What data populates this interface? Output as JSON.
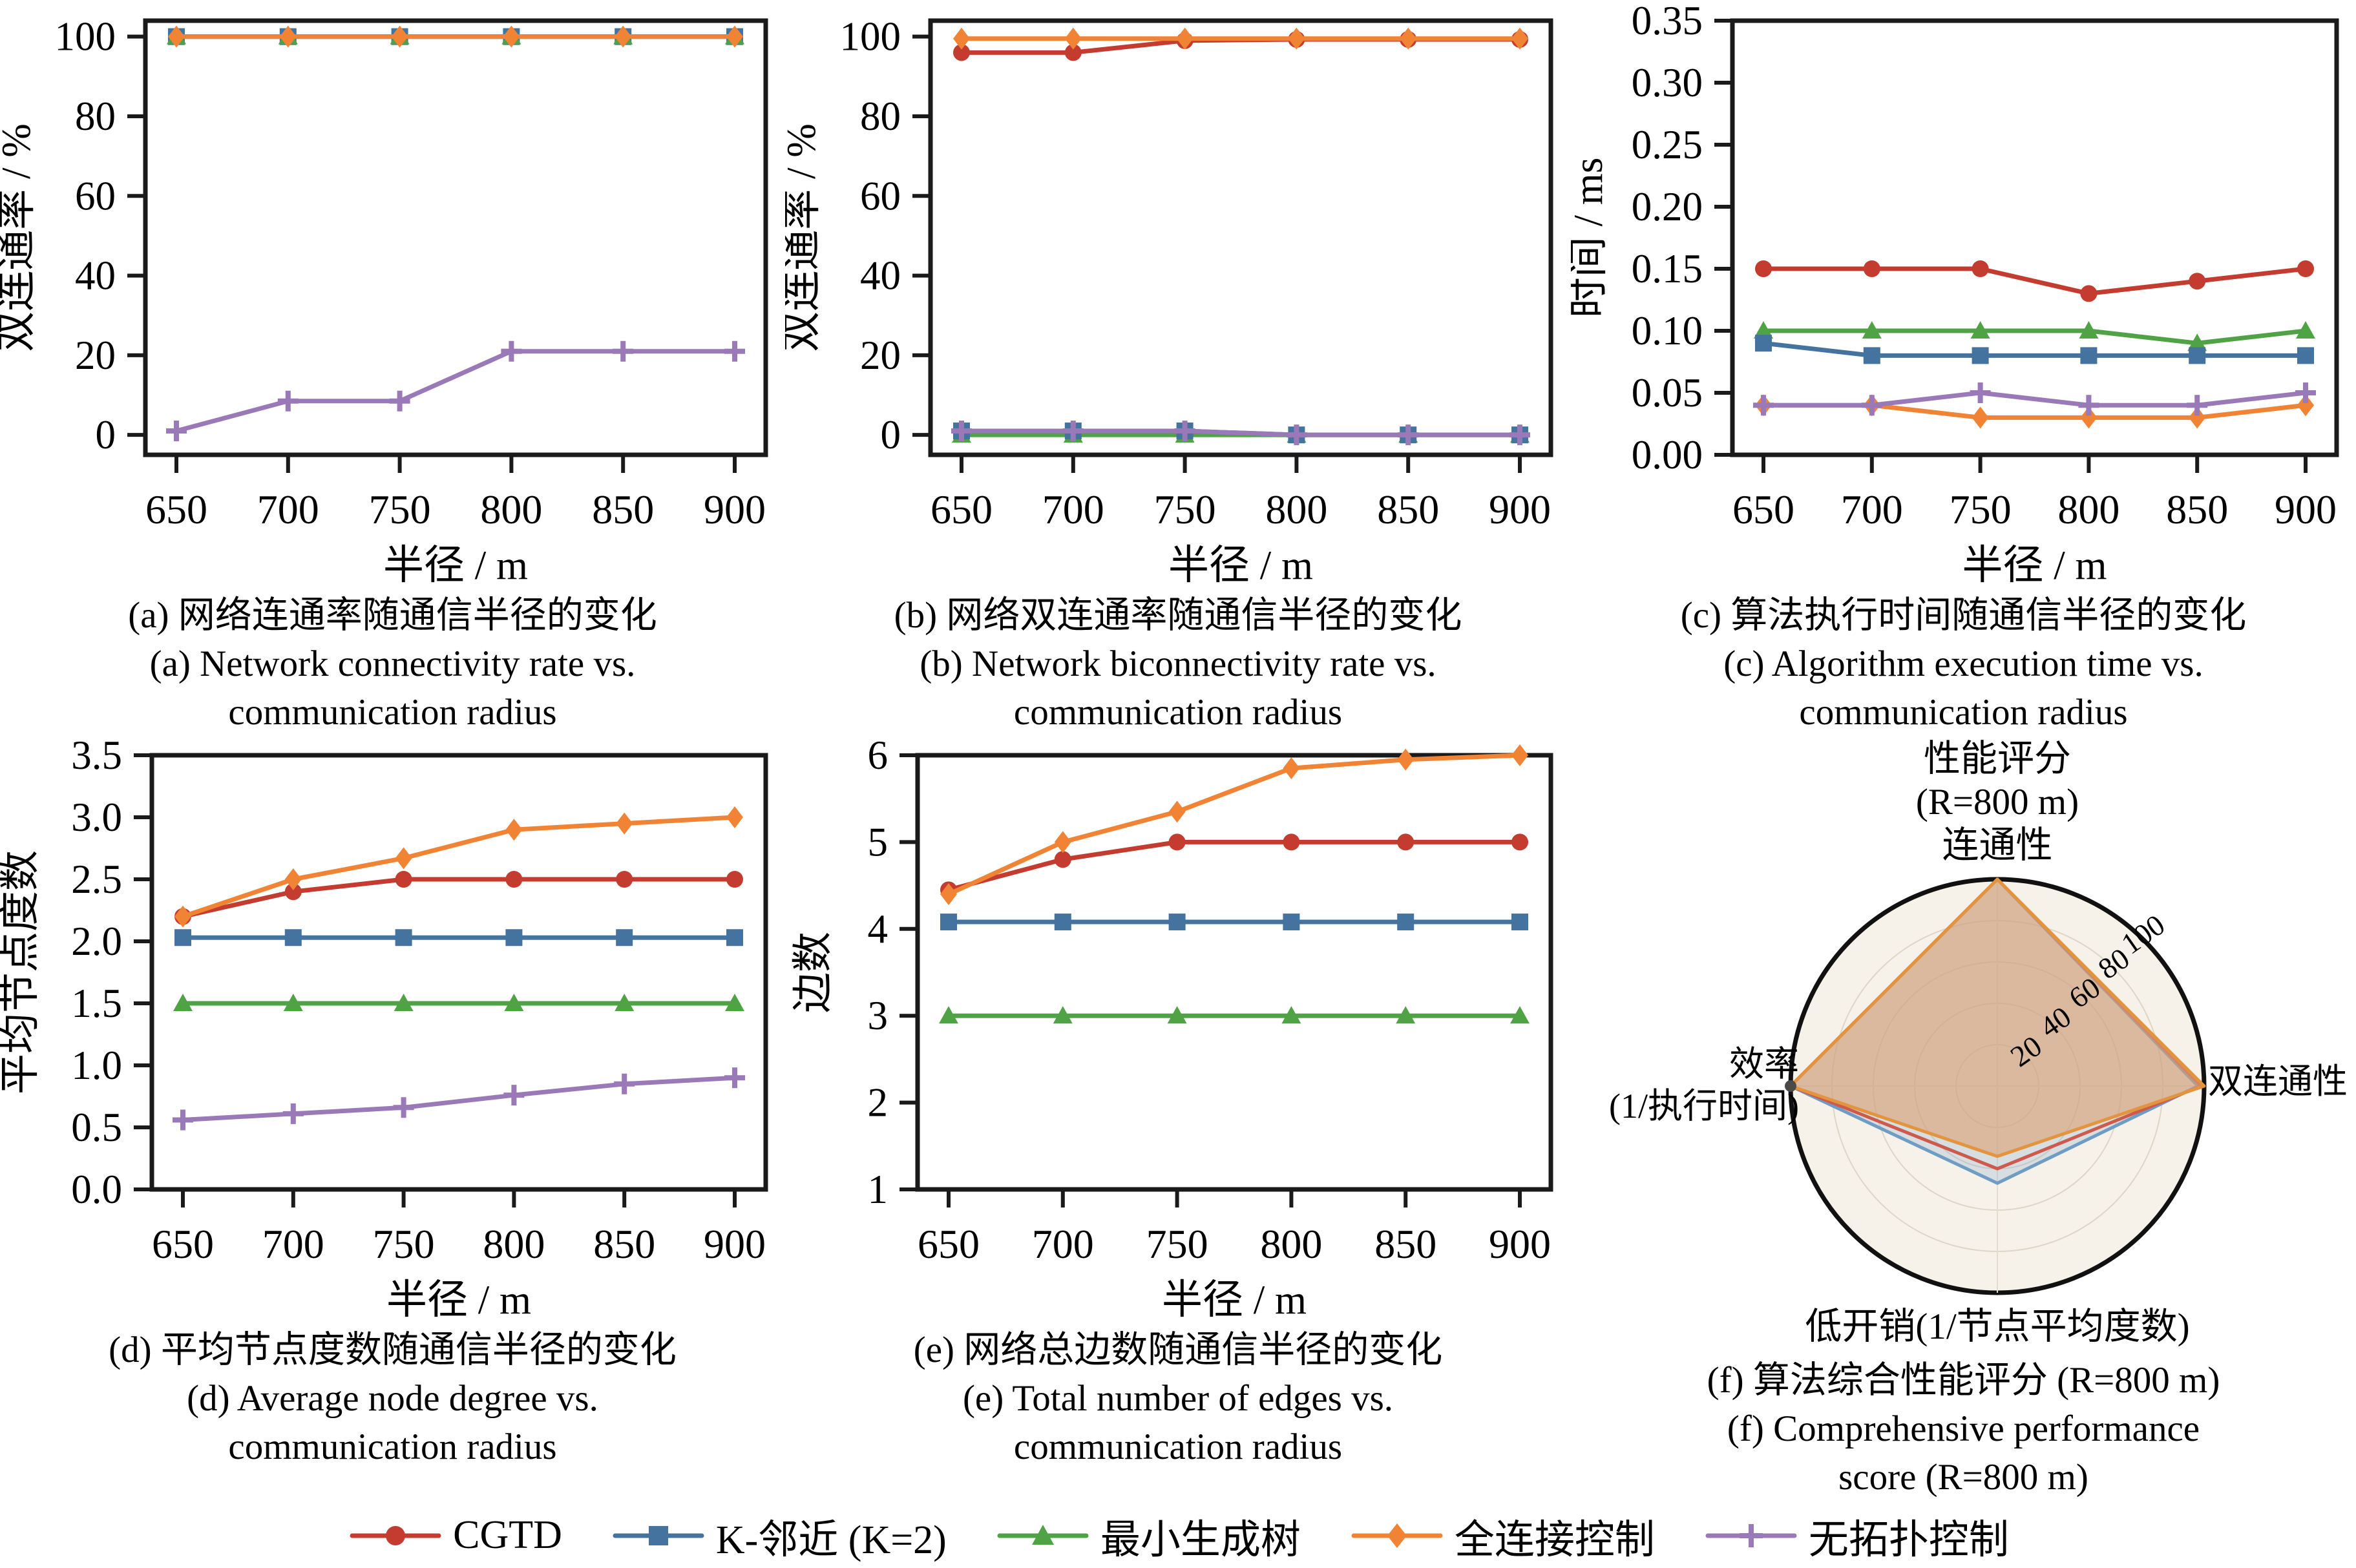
{
  "palette": {
    "cgtd": "#c43b2f",
    "knn": "#44739f",
    "mst": "#4fa345",
    "full": "#f08434",
    "none": "#9a79b8"
  },
  "frame_color": "#1a1a1a",
  "x_axis": {
    "label": "半径 / m",
    "ticks": [
      650,
      700,
      750,
      800,
      850,
      900
    ]
  },
  "chart_data": [
    {
      "type": "line",
      "id": "a",
      "y_label": "双连通率 / %",
      "x_label": "半径 / m",
      "ylim": [
        -5,
        104
      ],
      "yticks": [
        0,
        20,
        40,
        60,
        80,
        100
      ],
      "ytick_labels": [
        "0",
        "20",
        "40",
        "60",
        "80",
        "100"
      ],
      "x": [
        650,
        700,
        750,
        800,
        850,
        900
      ],
      "series": [
        {
          "name": "CGTD",
          "color": "cgtd",
          "marker": "circle",
          "values": [
            100,
            100,
            100,
            100,
            100,
            100
          ]
        },
        {
          "name": "K-邻近 (K=2)",
          "color": "knn",
          "marker": "square",
          "values": [
            100,
            100,
            100,
            100,
            100,
            100
          ]
        },
        {
          "name": "最小生成树",
          "color": "mst",
          "marker": "triangle",
          "values": [
            100,
            100,
            100,
            100,
            100,
            100
          ]
        },
        {
          "name": "无拓扑控制",
          "color": "none",
          "marker": "plus",
          "values": [
            1,
            8.5,
            8.5,
            21,
            21,
            21
          ]
        },
        {
          "name": "全连接控制",
          "color": "full",
          "marker": "diamond",
          "values": [
            100,
            100,
            100,
            100,
            100,
            100
          ]
        }
      ],
      "caption_zh": "(a) 网络连通率随通信半径的变化",
      "caption_en1": "(a) Network connectivity rate vs.",
      "caption_en2": "communication radius"
    },
    {
      "type": "line",
      "id": "b",
      "y_label": "双连通率 / %",
      "x_label": "半径 / m",
      "ylim": [
        -5,
        104
      ],
      "yticks": [
        0,
        20,
        40,
        60,
        80,
        100
      ],
      "ytick_labels": [
        "0",
        "20",
        "40",
        "60",
        "80",
        "100"
      ],
      "x": [
        650,
        700,
        750,
        800,
        850,
        900
      ],
      "series": [
        {
          "name": "最小生成树",
          "color": "mst",
          "marker": "triangle",
          "values": [
            0,
            0,
            0,
            0,
            0,
            0
          ]
        },
        {
          "name": "K-邻近 (K=2)",
          "color": "knn",
          "marker": "square",
          "values": [
            1,
            1,
            1,
            0,
            0,
            0
          ]
        },
        {
          "name": "无拓扑控制",
          "color": "none",
          "marker": "plus",
          "values": [
            1,
            1,
            1,
            0,
            0,
            0
          ]
        },
        {
          "name": "CGTD",
          "color": "cgtd",
          "marker": "circle",
          "values": [
            96,
            96,
            99,
            99.3,
            99.3,
            99.3
          ]
        },
        {
          "name": "全连接控制",
          "color": "full",
          "marker": "diamond",
          "values": [
            99.5,
            99.5,
            99.5,
            99.5,
            99.5,
            99.5
          ]
        }
      ],
      "caption_zh": "(b) 网络双连通率随通信半径的变化",
      "caption_en1": "(b) Network biconnectivity rate vs.",
      "caption_en2": "communication radius"
    },
    {
      "type": "line",
      "id": "c",
      "y_label": "时间 / ms",
      "x_label": "半径 / m",
      "ylim": [
        0,
        0.35
      ],
      "yticks": [
        0,
        0.05,
        0.1,
        0.15,
        0.2,
        0.25,
        0.3,
        0.35
      ],
      "ytick_labels": [
        "0.00",
        "0.05",
        "0.10",
        "0.15",
        "0.20",
        "0.25",
        "0.30",
        "0.35"
      ],
      "x": [
        650,
        700,
        750,
        800,
        850,
        900
      ],
      "series": [
        {
          "name": "CGTD",
          "color": "cgtd",
          "marker": "circle",
          "values": [
            0.15,
            0.15,
            0.15,
            0.13,
            0.14,
            0.15
          ]
        },
        {
          "name": "最小生成树",
          "color": "mst",
          "marker": "triangle",
          "values": [
            0.1,
            0.1,
            0.1,
            0.1,
            0.09,
            0.1
          ]
        },
        {
          "name": "K-邻近 (K=2)",
          "color": "knn",
          "marker": "square",
          "values": [
            0.09,
            0.08,
            0.08,
            0.08,
            0.08,
            0.08
          ]
        },
        {
          "name": "全连接控制",
          "color": "full",
          "marker": "diamond",
          "values": [
            0.04,
            0.04,
            0.03,
            0.03,
            0.03,
            0.04
          ]
        },
        {
          "name": "无拓扑控制",
          "color": "none",
          "marker": "plus",
          "values": [
            0.04,
            0.04,
            0.05,
            0.04,
            0.04,
            0.05
          ]
        }
      ],
      "caption_zh": "(c) 算法执行时间随通信半径的变化",
      "caption_en1": "(c) Algorithm execution time vs.",
      "caption_en2": "communication radius"
    },
    {
      "type": "line",
      "id": "d",
      "y_label": "平均节点度数",
      "x_label": "半径 / m",
      "ylim": [
        0,
        3.5
      ],
      "yticks": [
        0,
        0.5,
        1,
        1.5,
        2,
        2.5,
        3,
        3.5
      ],
      "ytick_labels": [
        "0.0",
        "0.5",
        "1.0",
        "1.5",
        "2.0",
        "2.5",
        "3.0",
        "3.5"
      ],
      "x": [
        650,
        700,
        750,
        800,
        850,
        900
      ],
      "series": [
        {
          "name": "CGTD",
          "color": "cgtd",
          "marker": "circle",
          "values": [
            2.2,
            2.4,
            2.5,
            2.5,
            2.5,
            2.5
          ]
        },
        {
          "name": "K-邻近 (K=2)",
          "color": "knn",
          "marker": "square",
          "values": [
            2.03,
            2.03,
            2.03,
            2.03,
            2.03,
            2.03
          ]
        },
        {
          "name": "最小生成树",
          "color": "mst",
          "marker": "triangle",
          "values": [
            1.5,
            1.5,
            1.5,
            1.5,
            1.5,
            1.5
          ]
        },
        {
          "name": "无拓扑控制",
          "color": "none",
          "marker": "plus",
          "values": [
            0.56,
            0.61,
            0.66,
            0.76,
            0.85,
            0.9
          ]
        },
        {
          "name": "全连接控制",
          "color": "full",
          "marker": "diamond",
          "values": [
            2.2,
            2.5,
            2.67,
            2.9,
            2.95,
            3.0
          ]
        }
      ],
      "caption_zh": "(d) 平均节点度数随通信半径的变化",
      "caption_en1": "(d) Average node degree vs.",
      "caption_en2": "communication radius"
    },
    {
      "type": "line",
      "id": "e",
      "y_label": "边数",
      "x_label": "半径 / m",
      "ylim": [
        1,
        6
      ],
      "yticks": [
        1,
        2,
        3,
        4,
        5,
        6
      ],
      "ytick_labels": [
        "1",
        "2",
        "3",
        "4",
        "5",
        "6"
      ],
      "x": [
        650,
        700,
        750,
        800,
        850,
        900
      ],
      "series": [
        {
          "name": "CGTD",
          "color": "cgtd",
          "marker": "circle",
          "values": [
            4.45,
            4.8,
            5.0,
            5.0,
            5.0,
            5.0
          ]
        },
        {
          "name": "K-邻近 (K=2)",
          "color": "knn",
          "marker": "square",
          "values": [
            4.08,
            4.08,
            4.08,
            4.08,
            4.08,
            4.08
          ]
        },
        {
          "name": "最小生成树",
          "color": "mst",
          "marker": "triangle",
          "values": [
            3,
            3,
            3,
            3,
            3,
            3
          ]
        },
        {
          "name": "全连接控制",
          "color": "full",
          "marker": "diamond",
          "values": [
            4.4,
            5.0,
            5.35,
            5.85,
            5.95,
            6.0
          ]
        }
      ],
      "caption_zh": "(e) 网络总边数随通信半径的变化",
      "caption_en1": "(e) Total number of edges vs.",
      "caption_en2": "communication radius"
    },
    {
      "type": "radar",
      "id": "f",
      "title_line1": "性能评分",
      "title_line2": "(R=800 m)",
      "axis_top": "连通性",
      "axis_right": "双连通性",
      "axis_bottom": "低开销(1/节点平均度数)",
      "axis_left_line1": "效率",
      "axis_left_line2": "(1/执行时间)",
      "rticks": [
        20,
        40,
        60,
        80,
        100
      ],
      "rmax": 100,
      "axes_order": [
        "连通性",
        "双连通性",
        "低开销(1/节点平均度数)",
        "效率(1/执行时间)"
      ],
      "series": [
        {
          "name": "K-邻近 (K=2)",
          "stroke": "#6f9cc3",
          "fill": "rgba(140,175,205,0.30)",
          "values": [
            100,
            97,
            47,
            100
          ]
        },
        {
          "name": "CGTD",
          "stroke": "#cd5a4d",
          "fill": "none",
          "values": [
            100,
            98.5,
            40,
            100
          ]
        },
        {
          "name": "全连接控制",
          "stroke": "#e2953e",
          "fill": "rgba(222,160,115,0.60)",
          "values": [
            100,
            100,
            34,
            100
          ]
        }
      ],
      "caption_zh": "(f) 算法综合性能评分 (R=800 m)",
      "caption_en1": "(f) Comprehensive performance",
      "caption_en2": "score (R=800 m)"
    }
  ],
  "legend": {
    "items": [
      {
        "label": "CGTD",
        "marker": "circle",
        "color": "cgtd"
      },
      {
        "label": "K-邻近 (K=2)",
        "marker": "square",
        "color": "knn"
      },
      {
        "label": "最小生成树",
        "marker": "triangle",
        "color": "mst"
      },
      {
        "label": "全连接控制",
        "marker": "diamond",
        "color": "full"
      },
      {
        "label": "无拓扑控制",
        "marker": "plus",
        "color": "none"
      }
    ]
  }
}
